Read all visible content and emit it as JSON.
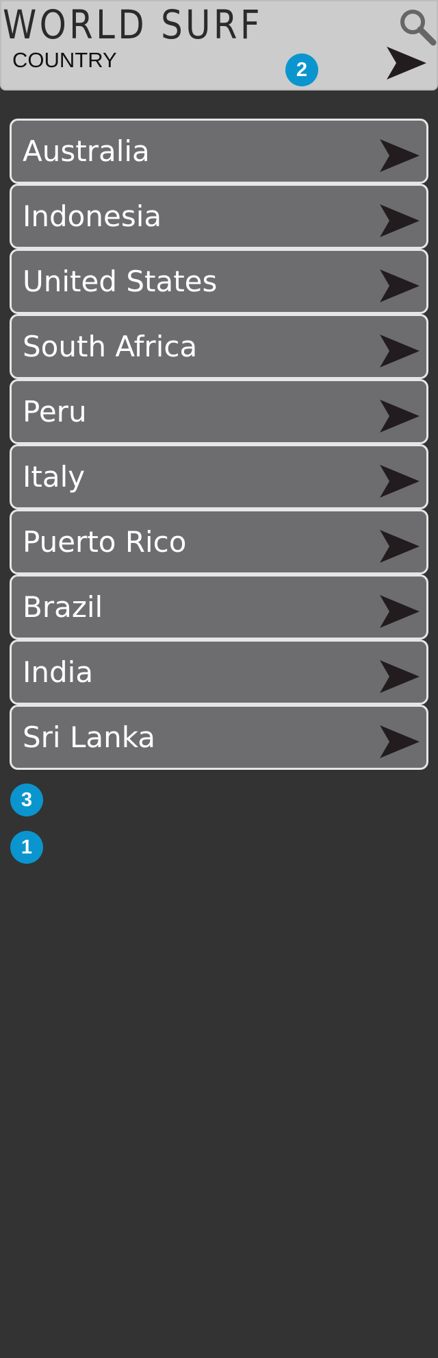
{
  "header": {
    "title": "WORLD SURF",
    "section": "COUNTRY",
    "search_icon": "search-icon",
    "next_icon": "arrow-right-icon"
  },
  "badges": {
    "b2": "2",
    "b3": "3",
    "b1": "1"
  },
  "countries": [
    {
      "name": "Australia"
    },
    {
      "name": "Indonesia"
    },
    {
      "name": "United States"
    },
    {
      "name": "South Africa"
    },
    {
      "name": "Peru"
    },
    {
      "name": "Italy"
    },
    {
      "name": "Puerto Rico"
    },
    {
      "name": "Brazil"
    },
    {
      "name": "India"
    },
    {
      "name": "Sri Lanka"
    }
  ],
  "colors": {
    "background": "#333333",
    "header": "#cccccc",
    "list_item": "#6d6d70",
    "badge": "#0b95cf",
    "arrow": "#221c1f"
  }
}
